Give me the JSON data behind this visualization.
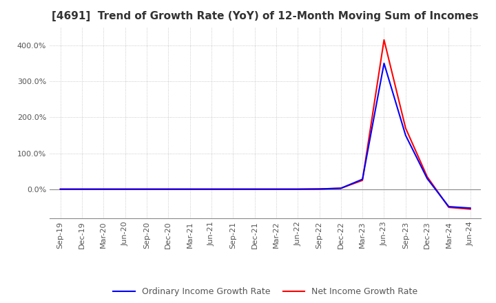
{
  "title": "[4691]  Trend of Growth Rate (YoY) of 12-Month Moving Sum of Incomes",
  "xlabel": "",
  "ylabel": "",
  "ylim": [
    -80,
    450
  ],
  "yticks": [
    0,
    100,
    200,
    300,
    400
  ],
  "ytick_labels": [
    "0.0%",
    "100.0%",
    "200.0%",
    "300.0%",
    "400.0%"
  ],
  "line_color_ordinary": "#0000ff",
  "line_color_net": "#ff0000",
  "legend_ordinary": "Ordinary Income Growth Rate",
  "legend_net": "Net Income Growth Rate",
  "background_color": "#ffffff",
  "grid_color": "#bbbbbb",
  "x_dates": [
    "Sep-19",
    "Dec-19",
    "Mar-20",
    "Jun-20",
    "Sep-20",
    "Dec-20",
    "Mar-21",
    "Jun-21",
    "Sep-21",
    "Dec-21",
    "Mar-22",
    "Jun-22",
    "Sep-22",
    "Dec-22",
    "Mar-23",
    "Jun-23",
    "Sep-23",
    "Dec-23",
    "Mar-24",
    "Jun-24"
  ],
  "ordinary_income_growth": [
    0.5,
    0.5,
    0.5,
    0.5,
    0.5,
    0.5,
    0.5,
    0.5,
    0.5,
    0.5,
    0.5,
    0.5,
    1.0,
    3.0,
    28.0,
    350.0,
    150.0,
    30.0,
    -48.0,
    -52.0
  ],
  "net_income_growth": [
    0.5,
    0.5,
    0.5,
    0.5,
    0.5,
    0.5,
    0.5,
    0.5,
    0.5,
    0.5,
    0.5,
    0.5,
    1.0,
    3.0,
    25.0,
    415.0,
    170.0,
    35.0,
    -50.0,
    -55.0
  ],
  "title_fontsize": 11,
  "tick_fontsize": 8,
  "legend_fontsize": 9,
  "linewidth": 1.5
}
